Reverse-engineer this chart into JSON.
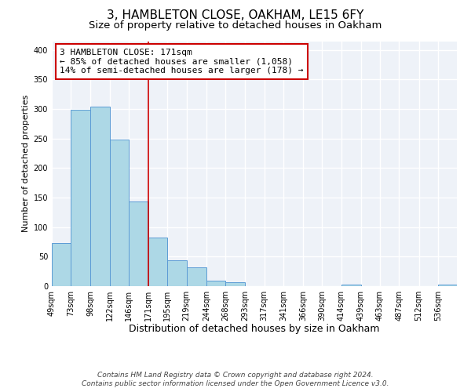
{
  "title": "3, HAMBLETON CLOSE, OAKHAM, LE15 6FY",
  "subtitle": "Size of property relative to detached houses in Oakham",
  "xlabel": "Distribution of detached houses by size in Oakham",
  "ylabel": "Number of detached properties",
  "bin_labels": [
    "49sqm",
    "73sqm",
    "98sqm",
    "122sqm",
    "146sqm",
    "171sqm",
    "195sqm",
    "219sqm",
    "244sqm",
    "268sqm",
    "293sqm",
    "317sqm",
    "341sqm",
    "366sqm",
    "390sqm",
    "414sqm",
    "439sqm",
    "463sqm",
    "487sqm",
    "512sqm",
    "536sqm"
  ],
  "bin_edges": [
    49,
    73,
    98,
    122,
    146,
    171,
    195,
    219,
    244,
    268,
    293,
    317,
    341,
    366,
    390,
    414,
    439,
    463,
    487,
    512,
    536,
    560
  ],
  "bar_heights": [
    73,
    299,
    304,
    249,
    144,
    83,
    44,
    32,
    9,
    6,
    0,
    0,
    0,
    0,
    0,
    2,
    0,
    0,
    0,
    0,
    2
  ],
  "bar_color": "#add8e6",
  "bar_edge_color": "#5b9bd5",
  "bar_linewidth": 0.7,
  "vline_x": 171,
  "vline_color": "#cc0000",
  "annotation_box_text": [
    "3 HAMBLETON CLOSE: 171sqm",
    "← 85% of detached houses are smaller (1,058)",
    "14% of semi-detached houses are larger (178) →"
  ],
  "annotation_box_color": "#cc0000",
  "ylim": [
    0,
    415
  ],
  "yticks": [
    0,
    50,
    100,
    150,
    200,
    250,
    300,
    350,
    400
  ],
  "footer_line1": "Contains HM Land Registry data © Crown copyright and database right 2024.",
  "footer_line2": "Contains public sector information licensed under the Open Government Licence v3.0.",
  "fig_bg_color": "#ffffff",
  "plot_bg_color": "#eef2f8",
  "grid_color": "#ffffff",
  "title_fontsize": 11,
  "subtitle_fontsize": 9.5,
  "xlabel_fontsize": 9,
  "ylabel_fontsize": 8,
  "tick_fontsize": 7,
  "annotation_fontsize": 8,
  "footer_fontsize": 6.5
}
